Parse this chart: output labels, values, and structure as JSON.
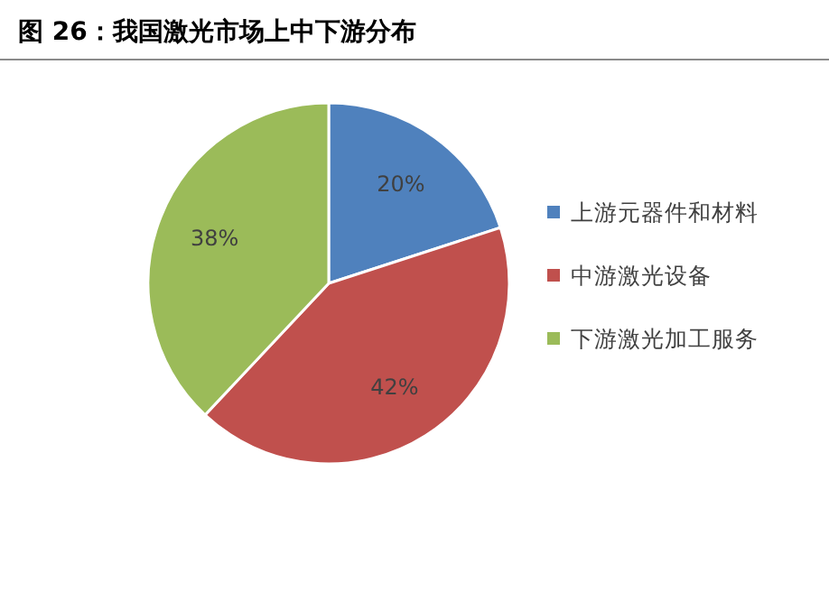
{
  "chart_data": {
    "type": "pie",
    "title": "图 26：我国激光市场上中下游分布",
    "categories": [
      "上游元器件和材料",
      "中游激光设备",
      "下游激光加工服务"
    ],
    "values": [
      20,
      42,
      38
    ],
    "colors": [
      "#4f81bd",
      "#c0504d",
      "#9bbb59"
    ],
    "value_labels": [
      "20%",
      "42%",
      "38%"
    ],
    "legend": "right"
  }
}
